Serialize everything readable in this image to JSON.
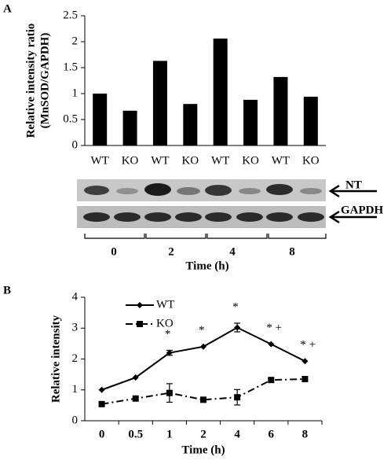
{
  "chart_data": [
    {
      "type": "bar",
      "panel_label": "A",
      "ylabel": [
        "Relative intensity ratio",
        "(MnSOD/GAPDH)"
      ],
      "categories": [
        "WT",
        "KO",
        "WT",
        "KO",
        "WT",
        "KO",
        "WT",
        "KO"
      ],
      "values": [
        1.0,
        0.67,
        1.63,
        0.8,
        2.06,
        0.88,
        1.32,
        0.94
      ],
      "color": "#000000",
      "ylim": [
        0,
        2.5
      ],
      "yticks": [
        0,
        0.5,
        1,
        1.5,
        2,
        2.5
      ]
    },
    {
      "type": "line",
      "panel_label": "B",
      "xlabel": "Time (h)",
      "ylabel": "Relative intensity",
      "categories": [
        "0",
        "0.5",
        "1",
        "2",
        "4",
        "6",
        "8"
      ],
      "series": [
        {
          "name": "WT",
          "color": "#000000",
          "marker": "diamond",
          "dash": "solid",
          "values": [
            1.0,
            1.4,
            2.2,
            2.4,
            3.02,
            2.48,
            1.93
          ],
          "errors": [
            null,
            null,
            0.08,
            null,
            0.14,
            null,
            null
          ]
        },
        {
          "name": "KO",
          "color": "#000000",
          "marker": "square",
          "dash": "dashdot",
          "values": [
            0.54,
            0.72,
            0.9,
            0.68,
            0.76,
            1.32,
            1.35
          ],
          "errors": [
            null,
            null,
            0.3,
            null,
            0.25,
            null,
            null
          ]
        }
      ],
      "annotations": [
        null,
        null,
        "*",
        "*",
        "*",
        "* +",
        "* +"
      ],
      "ylim": [
        0,
        4
      ],
      "yticks": [
        0,
        1,
        2,
        3,
        4
      ],
      "legend": "upper left"
    }
  ],
  "blot": {
    "bands": [
      "NT",
      "GAPDH"
    ],
    "time_labels": [
      "0",
      "2",
      "4",
      "8"
    ],
    "xlabel": "Time (h)"
  }
}
